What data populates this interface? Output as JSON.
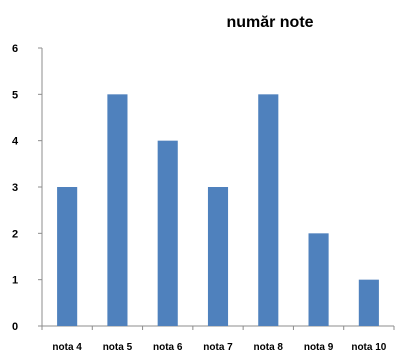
{
  "chart_data": {
    "type": "bar",
    "title": "număr note",
    "categories": [
      "nota 4",
      "nota 5",
      "nota 6",
      "nota 7",
      "nota 8",
      "nota 9",
      "nota 10"
    ],
    "values": [
      3,
      5,
      4,
      3,
      5,
      2,
      1
    ],
    "ylim": [
      0,
      6
    ],
    "yticks": [
      0,
      1,
      2,
      3,
      4,
      5,
      6
    ],
    "grid": false,
    "bar_color": "#4f81bd"
  }
}
